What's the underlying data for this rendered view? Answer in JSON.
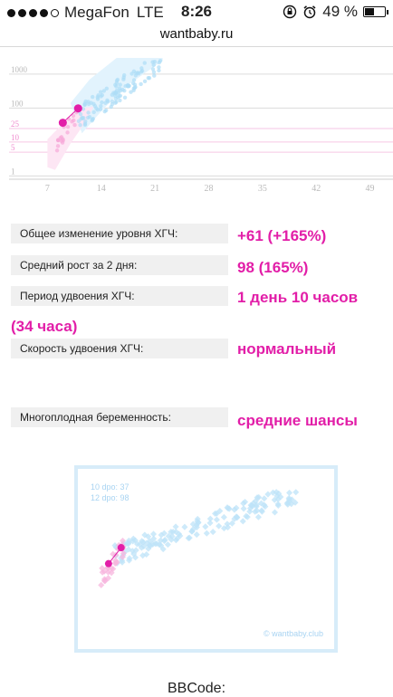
{
  "status": {
    "carrier": "MegaFon",
    "network": "LTE",
    "time": "8:26",
    "battery": "49 %",
    "battery_level": 0.49,
    "signal_bars": 4
  },
  "browser": {
    "url": "wantbaby.ru"
  },
  "chart_data": [
    {
      "type": "scatter",
      "y_scale": "log",
      "yticks": [
        "1000",
        "100",
        "25",
        "10",
        "5",
        "1"
      ],
      "xticks": [
        "7",
        "14",
        "21",
        "28",
        "35",
        "42",
        "49"
      ],
      "xlim": [
        2,
        52
      ],
      "ylim": [
        0.8,
        3000
      ],
      "series": [
        {
          "x": [
            9,
            11
          ],
          "y": [
            37,
            98
          ]
        }
      ]
    },
    {
      "type": "scatter",
      "series": [
        {
          "x": [
            10,
            12
          ],
          "y": [
            37,
            98
          ]
        }
      ]
    }
  ],
  "stats": [
    {
      "label": "Общее изменение уровня ХГЧ:",
      "value": "+61 (+165%)"
    },
    {
      "label": "Средний рост за 2 дня:",
      "value": "98 (165%)"
    },
    {
      "label": "Период удвоения ХГЧ:",
      "value": "1 день 10 часов (34 часа)"
    },
    {
      "label": "Скорость удвоения ХГЧ:",
      "value": "нормальный"
    },
    {
      "label": "Многоплодная беременность:",
      "value": "средние шансы"
    }
  ],
  "figure": {
    "legend_line1": "10 dpo: 37",
    "legend_line2": "12 dpo: 98",
    "brand": "© wantbaby.club"
  },
  "bbcode_label": "BBCode:",
  "colors": {
    "accent": "#e21ea8",
    "blue": "#a9d4f2"
  }
}
